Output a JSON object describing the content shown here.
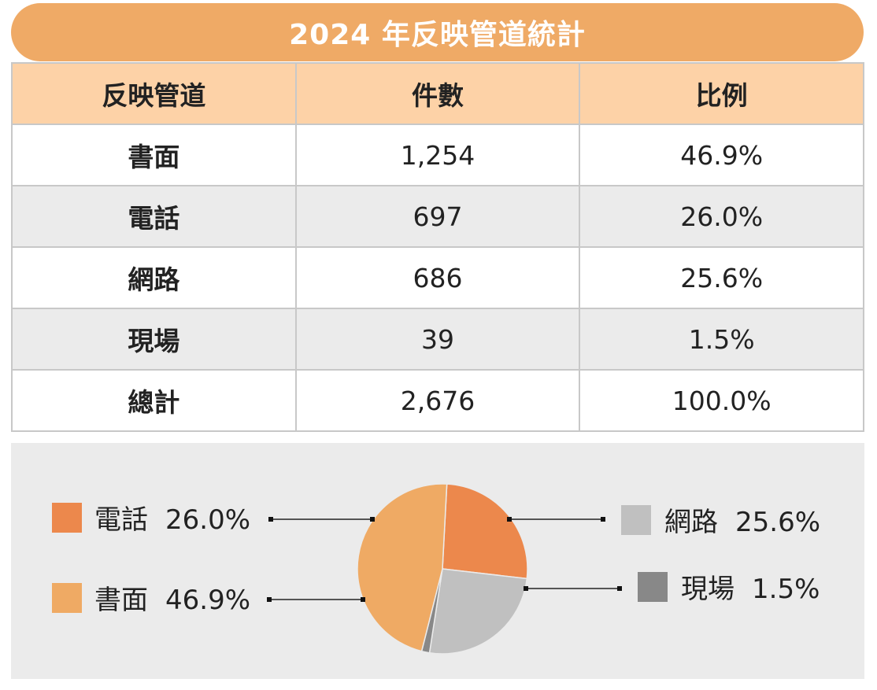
{
  "title": "2024 年反映管道統計",
  "table": {
    "headers": [
      "反映管道",
      "件數",
      "比例"
    ],
    "rows": [
      {
        "channel": "書面",
        "count": "1,254",
        "ratio": "46.9%"
      },
      {
        "channel": "電話",
        "count": "697",
        "ratio": "26.0%"
      },
      {
        "channel": "網路",
        "count": "686",
        "ratio": "25.6%"
      },
      {
        "channel": "現場",
        "count": "39",
        "ratio": "1.5%"
      },
      {
        "channel": "總計",
        "count": "2,676",
        "ratio": "100.0%"
      }
    ]
  },
  "chart_data": {
    "type": "pie",
    "title": "",
    "slices": [
      {
        "label": "電話",
        "value": 26.0,
        "display": "26.0%",
        "color": "#ec884c"
      },
      {
        "label": "網路",
        "value": 25.6,
        "display": "25.6%",
        "color": "#c0c0c0"
      },
      {
        "label": "現場",
        "value": 1.5,
        "display": "1.5%",
        "color": "#888888"
      },
      {
        "label": "書面",
        "value": 46.9,
        "display": "46.9%",
        "color": "#efaa64"
      }
    ],
    "legend": "left-and-right"
  }
}
